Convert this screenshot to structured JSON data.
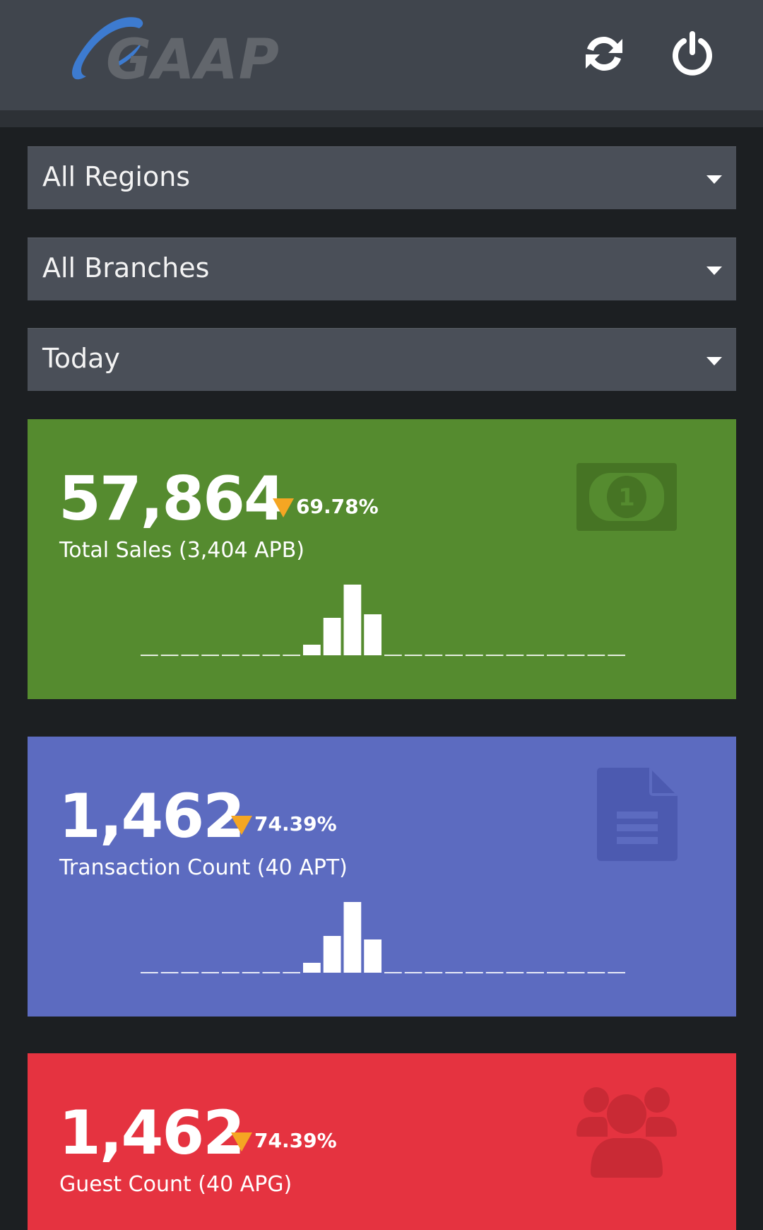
{
  "header": {
    "logo_text": "GAAP",
    "refresh_icon": "refresh-icon",
    "power_icon": "power-icon"
  },
  "filters": {
    "region": "All Regions",
    "branch": "All Branches",
    "period": "Today"
  },
  "colors": {
    "header_bg": "#40454d",
    "page_bg": "#1c1f22",
    "select_bg": "#4a4f58",
    "sales_card": "#558b2f",
    "transaction_card": "#5c6bc0",
    "guest_card": "#e53340",
    "delta_down": "#f5a623"
  },
  "cards": [
    {
      "id": "total-sales",
      "value": "57,864",
      "delta": "69.78%",
      "delta_direction": "down",
      "label": "Total Sales (3,404 APB)",
      "icon": "money-bill-icon",
      "sparkline": [
        0,
        0,
        0,
        0,
        0,
        0,
        0,
        0,
        0.15,
        0.53,
        1.0,
        0.58,
        0,
        0,
        0,
        0,
        0,
        0,
        0,
        0,
        0,
        0,
        0,
        0
      ]
    },
    {
      "id": "transaction-count",
      "value": "1,462",
      "delta": "74.39%",
      "delta_direction": "down",
      "label": "Transaction Count (40 APT)",
      "icon": "document-icon",
      "sparkline": [
        0,
        0,
        0,
        0,
        0,
        0,
        0,
        0,
        0.14,
        0.52,
        1.0,
        0.47,
        0,
        0,
        0,
        0,
        0,
        0,
        0,
        0,
        0,
        0,
        0,
        0
      ]
    },
    {
      "id": "guest-count",
      "value": "1,462",
      "delta": "74.39%",
      "delta_direction": "down",
      "label": "Guest Count (40 APG)",
      "icon": "users-icon"
    }
  ]
}
